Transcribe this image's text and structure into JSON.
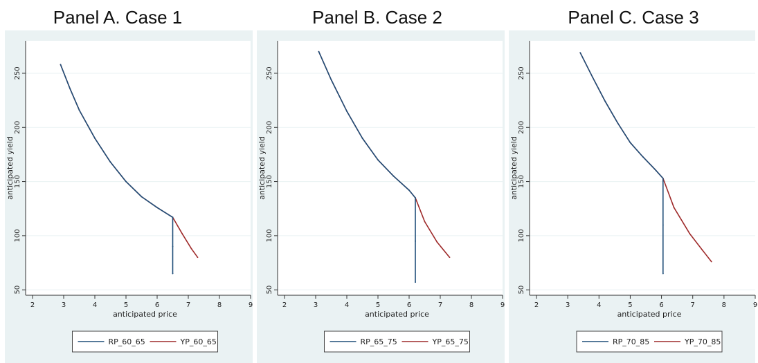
{
  "chart_data": [
    {
      "type": "line",
      "title": "Panel A. Case 1",
      "xlabel": "anticipated price",
      "ylabel": "anticipated yield",
      "xlim": [
        2,
        9
      ],
      "ylim": [
        45,
        280
      ],
      "xticks": [
        "2",
        "3",
        "4",
        "5",
        "6",
        "7",
        "8",
        "9"
      ],
      "yticks": [
        "50",
        "100",
        "150",
        "200",
        "250"
      ],
      "grid": true,
      "legend": "bottom",
      "series": [
        {
          "name": "RP_60_65",
          "color": "#1f4e79",
          "x": [
            2.9,
            3.2,
            3.5,
            4.0,
            4.5,
            5.0,
            5.5,
            6.0,
            6.5,
            6.5,
            6.5
          ],
          "y": [
            258,
            236,
            216,
            190,
            168,
            150,
            136,
            126,
            117,
            90,
            65
          ]
        },
        {
          "name": "YP_60_65",
          "color": "#9e2a2a",
          "x": [
            2.9,
            3.2,
            3.5,
            4.0,
            4.5,
            5.0,
            5.5,
            6.0,
            6.5,
            6.8,
            7.1,
            7.3
          ],
          "y": [
            258,
            236,
            216,
            190,
            168,
            150,
            136,
            126,
            117,
            102,
            88,
            80
          ]
        }
      ]
    },
    {
      "type": "line",
      "title": "Panel B. Case 2",
      "xlabel": "anticipated price",
      "ylabel": "anticipated yield",
      "xlim": [
        2,
        9
      ],
      "ylim": [
        45,
        280
      ],
      "xticks": [
        "2",
        "3",
        "4",
        "5",
        "6",
        "7",
        "8",
        "9"
      ],
      "yticks": [
        "50",
        "100",
        "150",
        "200",
        "250"
      ],
      "grid": true,
      "legend": "bottom",
      "series": [
        {
          "name": "RP_65_75",
          "color": "#1f4e79",
          "x": [
            3.1,
            3.5,
            4.0,
            4.5,
            5.0,
            5.5,
            6.0,
            6.2,
            6.2,
            6.2
          ],
          "y": [
            270,
            244,
            215,
            190,
            170,
            155,
            142,
            135,
            95,
            57
          ]
        },
        {
          "name": "YP_65_75",
          "color": "#9e2a2a",
          "x": [
            3.1,
            3.5,
            4.0,
            4.5,
            5.0,
            5.5,
            6.0,
            6.2,
            6.5,
            6.9,
            7.3
          ],
          "y": [
            270,
            244,
            215,
            190,
            170,
            155,
            142,
            135,
            113,
            94,
            80
          ]
        }
      ]
    },
    {
      "type": "line",
      "title": "Panel C. Case 3",
      "xlabel": "anticipated price",
      "ylabel": "anticipated yield",
      "xlim": [
        2,
        9
      ],
      "ylim": [
        45,
        280
      ],
      "xticks": [
        "2",
        "3",
        "4",
        "5",
        "6",
        "7",
        "8",
        "9"
      ],
      "yticks": [
        "50",
        "100",
        "150",
        "200",
        "250"
      ],
      "grid": true,
      "legend": "bottom",
      "series": [
        {
          "name": "RP_70_85",
          "color": "#1f4e79",
          "x": [
            3.4,
            3.8,
            4.2,
            4.6,
            5.0,
            5.4,
            5.8,
            6.05,
            6.05,
            6.05
          ],
          "y": [
            269,
            246,
            224,
            204,
            186,
            173,
            161,
            153,
            110,
            65
          ]
        },
        {
          "name": "YP_70_85",
          "color": "#9e2a2a",
          "x": [
            3.4,
            3.8,
            4.2,
            4.6,
            5.0,
            5.4,
            5.8,
            6.05,
            6.4,
            6.9,
            7.3,
            7.6
          ],
          "y": [
            269,
            246,
            224,
            204,
            186,
            173,
            161,
            153,
            126,
            102,
            87,
            76
          ]
        }
      ]
    }
  ]
}
